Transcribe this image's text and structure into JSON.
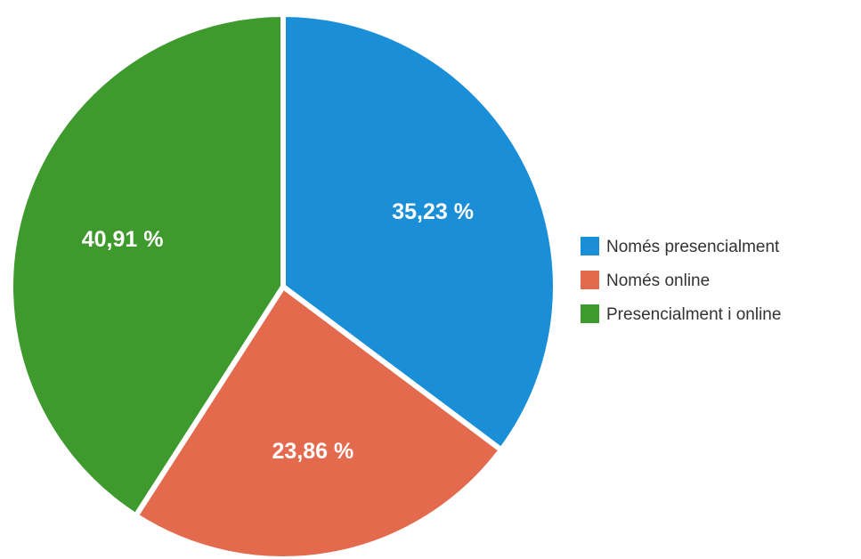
{
  "chart_data": {
    "type": "pie",
    "title": "",
    "start_angle_deg": 0,
    "direction": "clockwise",
    "legend_position": "right",
    "slices": [
      {
        "label": "Només presencialment",
        "value": 35.23,
        "display": "35,23 %",
        "color": "#1a8fd8"
      },
      {
        "label": "Només online",
        "value": 23.86,
        "display": "23,86 %",
        "color": "#e46a4e"
      },
      {
        "label": "Presencialment i online",
        "value": 40.91,
        "display": "40,91 %",
        "color": "#3f9a2e"
      }
    ]
  }
}
